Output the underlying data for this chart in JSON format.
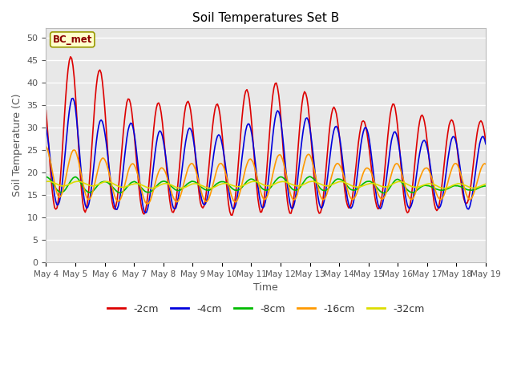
{
  "title": "Soil Temperatures Set B",
  "xlabel": "Time",
  "ylabel": "Soil Temperature (C)",
  "ylim": [
    0,
    52
  ],
  "yticks": [
    0,
    5,
    10,
    15,
    20,
    25,
    30,
    35,
    40,
    45,
    50
  ],
  "annotation": "BC_met",
  "colors": {
    "-2cm": "#dd0000",
    "-4cm": "#0000dd",
    "-8cm": "#00bb00",
    "-16cm": "#ff9900",
    "-32cm": "#dddd00"
  },
  "line_width": 1.2,
  "plot_bg_color": "#e8e8e8",
  "fig_bg_color": "#ffffff"
}
